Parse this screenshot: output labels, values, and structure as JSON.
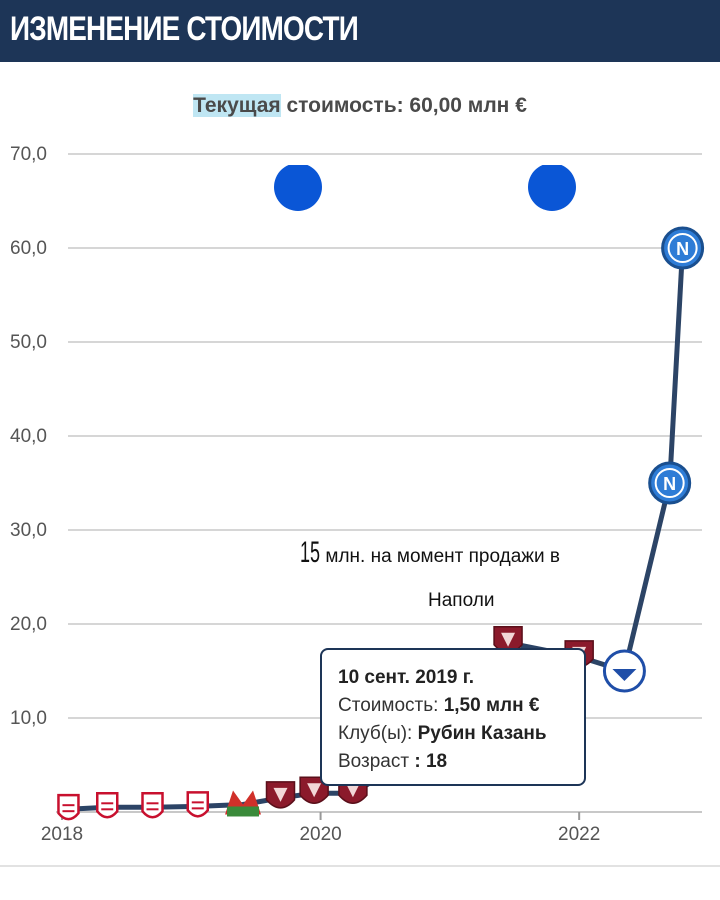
{
  "header": {
    "title": "ИЗМЕНЕНИЕ СТОИМОСТИ"
  },
  "subtitle": {
    "highlight": "Текущая",
    "rest": " стоимость: 60,00 млн €"
  },
  "annotation": {
    "big": "15",
    "line1": "млн.     на момент продажи в",
    "line2": "Наполи"
  },
  "tooltip": {
    "date": "10 сент. 2019 г.",
    "value_label": "Стоимость:",
    "value": "1,50 млн €",
    "club_label": "Клуб(ы):",
    "club": "Рубин Казань",
    "age_label": "Возраст",
    "age": ": 18"
  },
  "colors": {
    "header": "#1d3557",
    "line": "#2c4466",
    "grid": "#d6d6d6",
    "highlight": "#bfe6f3",
    "napoli": "#2e7cd6",
    "rubin": "#8b1a2b",
    "dynamo": "#c8102e",
    "marker_blue": "#0a56d6"
  },
  "chart_data": {
    "type": "line",
    "title": "Текущая стоимость: 60,00 млн €",
    "xlabel": "",
    "ylabel": "",
    "ylim": [
      0,
      70
    ],
    "xlim": [
      2018.0,
      2022.95
    ],
    "y_ticks": [
      "70,0",
      "60,0",
      "50,0",
      "40,0",
      "30,0",
      "20,0",
      "10,0"
    ],
    "x_ticks": [
      {
        "value": 2018,
        "label": "2018"
      },
      {
        "value": 2020,
        "label": "2020"
      },
      {
        "value": 2022,
        "label": "2022"
      }
    ],
    "grid": true,
    "series": [
      {
        "values": [
          {
            "x": 2018.05,
            "y": 0.3,
            "club": "Динамо"
          },
          {
            "x": 2018.35,
            "y": 0.5,
            "club": "Динамо"
          },
          {
            "x": 2018.7,
            "y": 0.5,
            "club": "Динамо"
          },
          {
            "x": 2019.05,
            "y": 0.6,
            "club": "Динамо"
          },
          {
            "x": 2019.4,
            "y": 0.8,
            "club": "Локомотив"
          },
          {
            "x": 2019.69,
            "y": 1.5,
            "club": "Рубин Казань"
          },
          {
            "x": 2019.95,
            "y": 2.0,
            "club": "Рубин Казань"
          },
          {
            "x": 2020.25,
            "y": 2.0,
            "club": "Рубин Казань"
          },
          {
            "x": 2020.55,
            "y": 4.5,
            "club": "Рубин Казань"
          },
          {
            "x": 2020.8,
            "y": 7.0,
            "club": "Рубин Казань"
          },
          {
            "x": 2021.1,
            "y": 10.0,
            "club": "Рубин Казань"
          },
          {
            "x": 2021.45,
            "y": 18.0,
            "club": "Рубин Казань"
          },
          {
            "x": 2022.0,
            "y": 16.5,
            "club": "Рубин Казань"
          },
          {
            "x": 2022.35,
            "y": 15.0,
            "club": "Динамо Москва"
          },
          {
            "x": 2022.7,
            "y": 35.0,
            "club": "Наполи"
          },
          {
            "x": 2022.8,
            "y": 60.0,
            "club": "Наполи"
          }
        ]
      }
    ]
  }
}
